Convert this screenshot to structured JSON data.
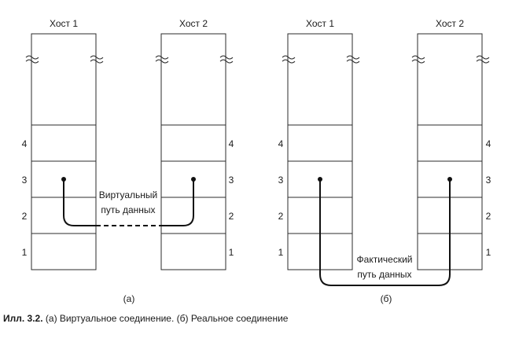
{
  "panels": [
    {
      "id": "a",
      "label": "(a)",
      "hosts": [
        {
          "title": "Хост 1",
          "layers": [
            "4",
            "3",
            "2",
            "1"
          ]
        },
        {
          "title": "Хост 2",
          "layers": [
            "4",
            "3",
            "2",
            "1"
          ]
        }
      ],
      "path_label_lines": [
        "Виртуальный",
        "путь данных"
      ]
    },
    {
      "id": "b",
      "label": "(б)",
      "hosts": [
        {
          "title": "Хост 1",
          "layers": [
            "4",
            "3",
            "2",
            "1"
          ]
        },
        {
          "title": "Хост 2",
          "layers": [
            "4",
            "3",
            "2",
            "1"
          ]
        }
      ],
      "path_label_lines": [
        "Фактический",
        "путь данных"
      ]
    }
  ],
  "caption": {
    "prefix": "Илл. 3.2.",
    "text": "(а) Виртуальное соединение. (б) Реальное соединение"
  }
}
